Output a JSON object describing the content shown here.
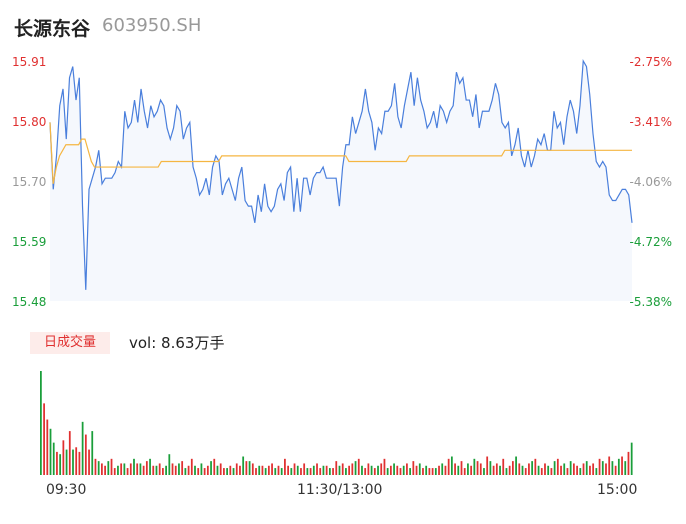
{
  "header": {
    "name": "长源东谷",
    "code": "603950.SH"
  },
  "volume_badge": "日成交量",
  "volume_text": "vol: 8.63万手",
  "colors": {
    "up": "#e03030",
    "down": "#1a9e3a",
    "neutral": "#999999",
    "price_line": "#4a7fdc",
    "avg_line": "#f5b642",
    "area": "#f5f8fd"
  },
  "chart_data": [
    {
      "type": "line",
      "series": [
        {
          "values": [
            15.8,
            15.68,
            15.74,
            15.83,
            15.86,
            15.77,
            15.88,
            15.9,
            15.84,
            15.88,
            15.65,
            15.5,
            15.68,
            15.7,
            15.72,
            15.75,
            15.69,
            15.7,
            15.7,
            15.7,
            15.71,
            15.73,
            15.72,
            15.82,
            15.79,
            15.8,
            15.84,
            15.8,
            15.86,
            15.82,
            15.79,
            15.83,
            15.81,
            15.82,
            15.84,
            15.83,
            15.79,
            15.77,
            15.79,
            15.83,
            15.82,
            15.77,
            15.79,
            15.8,
            15.72,
            15.7,
            15.67,
            15.68,
            15.7,
            15.67,
            15.72,
            15.74,
            15.73,
            15.67,
            15.69,
            15.7,
            15.68,
            15.66,
            15.7,
            15.72,
            15.66,
            15.65,
            15.65,
            15.62,
            15.67,
            15.64,
            15.69,
            15.65,
            15.64,
            15.65,
            15.68,
            15.69,
            15.66,
            15.71,
            15.72,
            15.64,
            15.7,
            15.64,
            15.7,
            15.7,
            15.67,
            15.7,
            15.71,
            15.71,
            15.72,
            15.7,
            15.7,
            15.7,
            15.7,
            15.65,
            15.72,
            15.76,
            15.76,
            15.81,
            15.78,
            15.8,
            15.82,
            15.86,
            15.82,
            15.8,
            15.75,
            15.79,
            15.78,
            15.82,
            15.82,
            15.83,
            15.87,
            15.81,
            15.79,
            15.83,
            15.86,
            15.89,
            15.83,
            15.88,
            15.84,
            15.82,
            15.79,
            15.8,
            15.82,
            15.79,
            15.83,
            15.82,
            15.8,
            15.82,
            15.83,
            15.89,
            15.87,
            15.88,
            15.84,
            15.84,
            15.81,
            15.85,
            15.79,
            15.82,
            15.82,
            15.82,
            15.84,
            15.87,
            15.85,
            15.8,
            15.79,
            15.8,
            15.74,
            15.76,
            15.79,
            15.74,
            15.72,
            15.75,
            15.72,
            15.74,
            15.77,
            15.76,
            15.78,
            15.75,
            15.75,
            15.82,
            15.79,
            15.8,
            15.76,
            15.81,
            15.84,
            15.82,
            15.78,
            15.83,
            15.91,
            15.9,
            15.85,
            15.78,
            15.73,
            15.72,
            15.73,
            15.72,
            15.67,
            15.66,
            15.66,
            15.67,
            15.68,
            15.68,
            15.67,
            15.62
          ]
        },
        {
          "values": [
            15.8,
            15.69,
            15.72,
            15.74,
            15.75,
            15.76,
            15.76,
            15.76,
            15.76,
            15.76,
            15.77,
            15.77,
            15.75,
            15.73,
            15.72,
            15.72,
            15.72,
            15.72,
            15.72,
            15.72,
            15.72,
            15.72,
            15.72,
            15.72,
            15.72,
            15.72,
            15.72,
            15.72,
            15.72,
            15.72,
            15.72,
            15.72,
            15.72,
            15.72,
            15.72,
            15.73,
            15.73,
            15.73,
            15.73,
            15.73,
            15.73,
            15.73,
            15.73,
            15.73,
            15.73,
            15.73,
            15.73,
            15.73,
            15.73,
            15.73,
            15.73,
            15.73,
            15.73,
            15.73,
            15.74,
            15.74,
            15.74,
            15.74,
            15.74,
            15.74,
            15.74,
            15.74,
            15.74,
            15.74,
            15.74,
            15.74,
            15.74,
            15.74,
            15.74,
            15.74,
            15.74,
            15.74,
            15.74,
            15.74,
            15.74,
            15.74,
            15.74,
            15.74,
            15.74,
            15.74,
            15.74,
            15.74,
            15.74,
            15.74,
            15.74,
            15.74,
            15.74,
            15.74,
            15.74,
            15.74,
            15.74,
            15.74,
            15.74,
            15.74,
            15.73,
            15.73,
            15.73,
            15.73,
            15.73,
            15.73,
            15.73,
            15.73,
            15.73,
            15.73,
            15.73,
            15.73,
            15.73,
            15.73,
            15.73,
            15.73,
            15.73,
            15.73,
            15.73,
            15.74,
            15.74,
            15.74,
            15.74,
            15.74,
            15.74,
            15.74,
            15.74,
            15.74,
            15.74,
            15.74,
            15.74,
            15.74,
            15.74,
            15.74,
            15.74,
            15.74,
            15.74,
            15.74,
            15.74,
            15.74,
            15.74,
            15.74,
            15.74,
            15.74,
            15.74,
            15.74,
            15.74,
            15.74,
            15.74,
            15.75,
            15.75,
            15.75,
            15.75,
            15.75,
            15.75,
            15.75,
            15.75,
            15.75,
            15.75,
            15.75,
            15.75,
            15.75,
            15.75,
            15.75,
            15.75,
            15.75,
            15.75,
            15.75,
            15.75,
            15.75,
            15.75,
            15.75,
            15.75,
            15.75,
            15.75,
            15.75,
            15.75,
            15.75,
            15.75,
            15.75,
            15.75,
            15.75,
            15.75,
            15.75,
            15.75,
            15.75,
            15.75,
            15.75,
            15.75,
            15.75
          ]
        }
      ],
      "ylim": [
        15.48,
        15.91
      ],
      "left_ticks": [
        "15.91",
        "15.80",
        "15.70",
        "15.59",
        "15.48"
      ],
      "right_ticks": [
        "-2.75%",
        "-3.41%",
        "-4.06%",
        "-4.72%",
        "-5.38%"
      ],
      "tick_colors": [
        "up",
        "up",
        "neutral",
        "down",
        "down"
      ],
      "grid": false
    },
    {
      "type": "bar",
      "values": [
        90,
        62,
        48,
        40,
        28,
        20,
        18,
        30,
        22,
        38,
        22,
        24,
        20,
        46,
        35,
        22,
        38,
        14,
        12,
        10,
        8,
        12,
        14,
        6,
        8,
        10,
        10,
        6,
        10,
        14,
        10,
        10,
        8,
        12,
        14,
        8,
        8,
        10,
        6,
        8,
        18,
        10,
        8,
        10,
        12,
        6,
        8,
        14,
        8,
        6,
        10,
        6,
        8,
        12,
        14,
        8,
        10,
        6,
        6,
        8,
        6,
        10,
        8,
        16,
        12,
        12,
        10,
        6,
        8,
        8,
        6,
        8,
        10,
        6,
        8,
        6,
        14,
        8,
        6,
        10,
        8,
        6,
        10,
        6,
        6,
        8,
        10,
        6,
        8,
        8,
        6,
        6,
        12,
        8,
        10,
        6,
        8,
        10,
        12,
        14,
        8,
        6,
        10,
        8,
        6,
        8,
        10,
        14,
        6,
        8,
        10,
        8,
        6,
        8,
        10,
        6,
        12,
        8,
        10,
        6,
        8,
        6,
        6,
        6,
        8,
        10,
        8,
        14,
        16,
        10,
        8,
        12,
        6,
        10,
        8,
        14,
        12,
        10,
        6,
        16,
        12,
        8,
        10,
        8,
        14,
        6,
        8,
        12,
        16,
        10,
        8,
        6,
        10,
        12,
        14,
        8,
        6,
        10,
        8,
        6,
        12,
        14,
        8,
        10,
        6,
        12,
        10,
        8,
        6,
        10,
        12,
        8,
        10,
        6,
        14,
        12,
        10,
        16,
        12,
        8,
        14,
        16,
        12,
        20,
        28
      ],
      "colors": [
        "down",
        "up",
        "up",
        "down",
        "down",
        "up",
        "down",
        "up",
        "down",
        "up",
        "down",
        "up",
        "up",
        "down",
        "up",
        "up",
        "down",
        "up",
        "down",
        "up",
        "up",
        "down",
        "up",
        "up",
        "down",
        "up",
        "down",
        "up",
        "up",
        "down",
        "up",
        "down",
        "up",
        "up",
        "down",
        "up",
        "down",
        "up",
        "up",
        "down",
        "down",
        "up",
        "up",
        "down",
        "up",
        "down",
        "up",
        "up",
        "down",
        "up",
        "down",
        "up",
        "up",
        "down",
        "up",
        "down",
        "up",
        "up",
        "down",
        "up",
        "down",
        "up",
        "up",
        "down",
        "up",
        "down",
        "up",
        "up",
        "down",
        "up",
        "down",
        "up",
        "up",
        "down",
        "up",
        "down",
        "up",
        "up",
        "down",
        "up",
        "down",
        "up",
        "up",
        "down",
        "up",
        "down",
        "up",
        "up",
        "down",
        "up",
        "down",
        "up",
        "up",
        "down",
        "up",
        "down",
        "up",
        "up",
        "down",
        "up",
        "down",
        "up",
        "up",
        "down",
        "up",
        "down",
        "up",
        "up",
        "down",
        "up",
        "down",
        "up",
        "up",
        "down",
        "up",
        "down",
        "up",
        "up",
        "down",
        "up",
        "down",
        "up",
        "up",
        "down",
        "up",
        "down",
        "up",
        "up",
        "down",
        "up",
        "down",
        "up",
        "up",
        "down",
        "up",
        "down",
        "up",
        "up",
        "down",
        "up",
        "down",
        "up",
        "up",
        "down",
        "up",
        "down",
        "up",
        "up",
        "down",
        "up",
        "down",
        "up",
        "up",
        "down",
        "up",
        "down",
        "up",
        "up",
        "down",
        "up",
        "down",
        "up",
        "up",
        "down",
        "up",
        "down",
        "up",
        "up",
        "down",
        "up",
        "down",
        "up",
        "up",
        "down",
        "up",
        "down",
        "up",
        "up",
        "down",
        "up",
        "down",
        "up",
        "down",
        "up",
        "down"
      ],
      "x_ticks": [
        "09:30",
        "11:30/13:00",
        "15:00"
      ]
    }
  ]
}
